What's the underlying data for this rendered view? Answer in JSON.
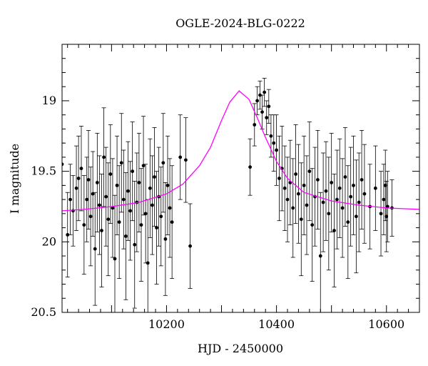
{
  "chart_data": {
    "type": "scatter",
    "title": "OGLE-2024-BLG-0222",
    "xlabel": "HJD - 2450000",
    "ylabel": "I magnitude",
    "xlim": [
      10010,
      10660
    ],
    "ylim": [
      20.5,
      18.6
    ],
    "y_inverted": true,
    "x_ticks": [
      10200,
      10400,
      10600
    ],
    "y_ticks": [
      19,
      19.5,
      20,
      20.5
    ],
    "x_tick_labels": [
      "10200",
      "10400",
      "10600"
    ],
    "y_tick_labels": [
      "19",
      "19.5",
      "20",
      "20.5"
    ],
    "grid": false,
    "legend": "none",
    "colors": {
      "points": "#000000",
      "model": "#ff00ff",
      "axes": "#000000"
    },
    "model_curve": {
      "name": "",
      "x": [
        10010,
        10050,
        10100,
        10150,
        10200,
        10230,
        10260,
        10280,
        10300,
        10315,
        10332,
        10350,
        10365,
        10380,
        10400,
        10420,
        10450,
        10500,
        10550,
        10600,
        10660
      ],
      "y": [
        19.78,
        19.77,
        19.75,
        19.72,
        19.66,
        19.59,
        19.46,
        19.33,
        19.14,
        19.01,
        18.93,
        18.99,
        19.12,
        19.26,
        19.43,
        19.55,
        19.65,
        19.71,
        19.74,
        19.76,
        19.77
      ]
    },
    "series": [
      {
        "name": "",
        "x": [
          10010,
          10020,
          10025,
          10030,
          10036,
          10040,
          10045,
          10050,
          10055,
          10058,
          10062,
          10066,
          10070,
          10074,
          10078,
          10082,
          10086,
          10090,
          10094,
          10098,
          10102,
          10106,
          10110,
          10114,
          10118,
          10122,
          10126,
          10130,
          10134,
          10138,
          10142,
          10146,
          10150,
          10154,
          10158,
          10162,
          10166,
          10170,
          10174,
          10178,
          10182,
          10186,
          10190,
          10194,
          10198,
          10202,
          10206,
          10210,
          10225,
          10235,
          10243,
          10352,
          10360,
          10365,
          10370,
          10374,
          10378,
          10382,
          10386,
          10390,
          10395,
          10400,
          10405,
          10410,
          10415,
          10420,
          10425,
          10430,
          10435,
          10440,
          10445,
          10450,
          10455,
          10460,
          10465,
          10470,
          10475,
          10480,
          10485,
          10490,
          10495,
          10500,
          10505,
          10510,
          10515,
          10520,
          10525,
          10530,
          10535,
          10540,
          10545,
          10550,
          10555,
          10560,
          10570,
          10580,
          10590,
          10595,
          10598,
          10600,
          10602,
          10610
        ],
        "y": [
          19.45,
          19.95,
          19.7,
          19.78,
          19.62,
          19.55,
          19.48,
          19.88,
          19.7,
          19.56,
          19.82,
          19.66,
          20.05,
          19.58,
          19.74,
          19.92,
          19.4,
          19.68,
          19.84,
          19.52,
          19.76,
          20.12,
          19.6,
          19.86,
          19.44,
          19.7,
          19.96,
          19.64,
          19.78,
          19.5,
          20.02,
          19.72,
          19.58,
          19.88,
          19.46,
          19.8,
          20.15,
          19.62,
          19.74,
          19.54,
          19.9,
          19.68,
          19.82,
          19.44,
          19.98,
          19.6,
          19.76,
          19.86,
          19.4,
          19.42,
          20.03,
          19.47,
          19.17,
          19.0,
          18.96,
          19.08,
          18.94,
          19.12,
          19.04,
          19.25,
          19.3,
          19.35,
          19.55,
          19.48,
          19.62,
          19.7,
          19.58,
          19.76,
          19.52,
          19.66,
          19.84,
          19.6,
          19.74,
          19.5,
          19.88,
          19.68,
          19.56,
          20.1,
          19.72,
          19.64,
          19.8,
          19.58,
          19.92,
          19.7,
          19.62,
          19.76,
          19.54,
          19.86,
          19.68,
          19.6,
          19.82,
          19.72,
          19.56,
          19.66,
          19.75,
          19.62,
          19.8,
          19.7,
          19.6,
          19.82,
          19.75,
          19.76
        ],
        "yerr": [
          0.15,
          0.3,
          0.25,
          0.25,
          0.3,
          0.3,
          0.3,
          0.35,
          0.3,
          0.35,
          0.35,
          0.3,
          0.4,
          0.35,
          0.35,
          0.4,
          0.35,
          0.35,
          0.4,
          0.35,
          0.35,
          0.45,
          0.35,
          0.4,
          0.35,
          0.35,
          0.45,
          0.35,
          0.35,
          0.35,
          0.45,
          0.35,
          0.35,
          0.4,
          0.35,
          0.35,
          0.45,
          0.35,
          0.35,
          0.35,
          0.4,
          0.35,
          0.35,
          0.35,
          0.4,
          0.35,
          0.35,
          0.4,
          0.3,
          0.3,
          0.3,
          0.2,
          0.15,
          0.1,
          0.1,
          0.12,
          0.1,
          0.12,
          0.12,
          0.15,
          0.2,
          0.25,
          0.3,
          0.3,
          0.3,
          0.3,
          0.3,
          0.35,
          0.35,
          0.35,
          0.4,
          0.35,
          0.35,
          0.35,
          0.4,
          0.35,
          0.35,
          0.45,
          0.35,
          0.35,
          0.4,
          0.35,
          0.4,
          0.35,
          0.35,
          0.35,
          0.35,
          0.4,
          0.35,
          0.35,
          0.4,
          0.35,
          0.35,
          0.35,
          0.3,
          0.3,
          0.3,
          0.25,
          0.25,
          0.25,
          0.25,
          0.2
        ]
      }
    ]
  }
}
